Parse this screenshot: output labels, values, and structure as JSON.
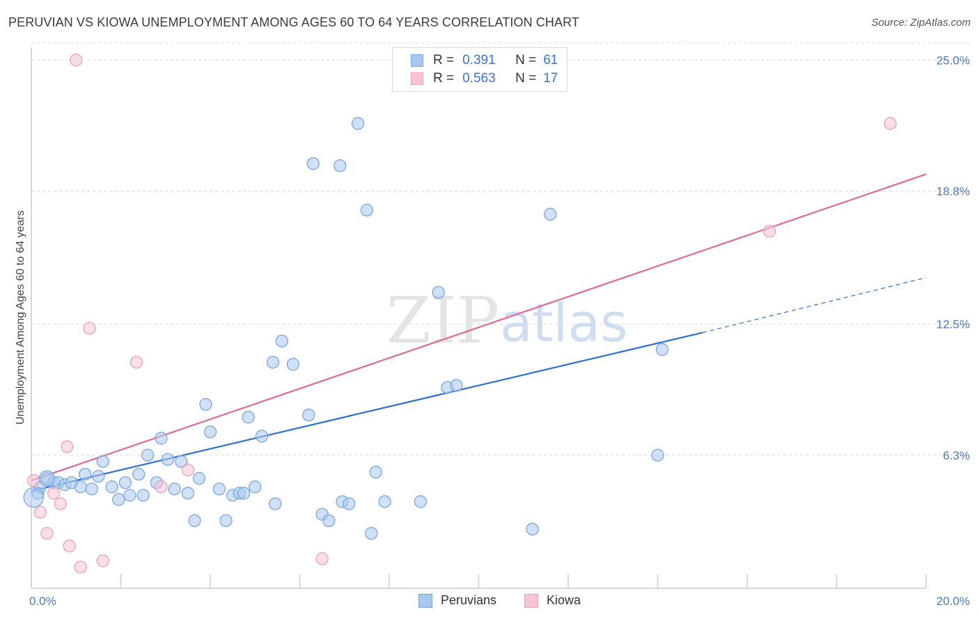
{
  "header": {
    "title": "PERUVIAN VS KIOWA UNEMPLOYMENT AMONG AGES 60 TO 64 YEARS CORRELATION CHART",
    "source": "Source: ZipAtlas.com"
  },
  "watermark": {
    "zip": "ZIP",
    "atlas": "atlas"
  },
  "legend": {
    "rows": [
      {
        "r_label": "R =",
        "r_value": "0.391",
        "n_label": "N =",
        "n_value": "61"
      },
      {
        "r_label": "R =",
        "r_value": "0.563",
        "n_label": "N =",
        "n_value": "17"
      }
    ],
    "bottom": [
      {
        "label": "Peruvians"
      },
      {
        "label": "Kiowa"
      }
    ]
  },
  "colors": {
    "peruvians_fill": "#a9c8f0",
    "peruvians_stroke": "#7aa6dd",
    "peruvians_line": "#2f6fd0",
    "kiowa_fill": "#f8c5d6",
    "kiowa_stroke": "#e8a0bb",
    "kiowa_line": "#e06a93",
    "grid": "#dcdcdc",
    "tick_text": "#4a78c4"
  },
  "chart_data": {
    "type": "scatter",
    "title": "PERUVIAN VS KIOWA UNEMPLOYMENT AMONG AGES 60 TO 64 YEARS CORRELATION CHART",
    "xlabel": "",
    "ylabel": "Unemployment Among Ages 60 to 64 years",
    "xlim": [
      0,
      20
    ],
    "ylim": [
      0,
      25.8
    ],
    "x_tick_labels": [
      "0.0%",
      "20.0%"
    ],
    "y_ticks": [
      6.3,
      12.5,
      18.8,
      25.0
    ],
    "y_tick_labels": [
      "6.3%",
      "12.5%",
      "18.8%",
      "25.0%"
    ],
    "grid": true,
    "series": [
      {
        "name": "Peruvians",
        "points": [
          [
            0.15,
            4.5
          ],
          [
            0.2,
            4.8
          ],
          [
            0.35,
            5.2
          ],
          [
            0.5,
            5.0
          ],
          [
            0.6,
            5.0
          ],
          [
            0.75,
            4.9
          ],
          [
            0.9,
            5.0
          ],
          [
            1.1,
            4.8
          ],
          [
            1.2,
            5.4
          ],
          [
            1.35,
            4.7
          ],
          [
            1.5,
            5.3
          ],
          [
            1.6,
            6.0
          ],
          [
            1.8,
            4.8
          ],
          [
            1.95,
            4.2
          ],
          [
            2.1,
            5.0
          ],
          [
            2.2,
            4.4
          ],
          [
            2.4,
            5.4
          ],
          [
            2.5,
            4.4
          ],
          [
            2.6,
            6.3
          ],
          [
            2.8,
            5.0
          ],
          [
            2.9,
            7.1
          ],
          [
            3.05,
            6.1
          ],
          [
            3.2,
            4.7
          ],
          [
            3.35,
            6.0
          ],
          [
            3.5,
            4.5
          ],
          [
            3.65,
            3.2
          ],
          [
            3.75,
            5.2
          ],
          [
            3.9,
            8.7
          ],
          [
            4.0,
            7.4
          ],
          [
            4.2,
            4.7
          ],
          [
            4.35,
            3.2
          ],
          [
            4.5,
            4.4
          ],
          [
            4.65,
            4.5
          ],
          [
            4.75,
            4.5
          ],
          [
            4.85,
            8.1
          ],
          [
            5.0,
            4.8
          ],
          [
            5.15,
            7.2
          ],
          [
            5.4,
            10.7
          ],
          [
            5.45,
            4.0
          ],
          [
            5.6,
            11.7
          ],
          [
            5.85,
            10.6
          ],
          [
            6.2,
            8.2
          ],
          [
            6.3,
            20.1
          ],
          [
            6.5,
            3.5
          ],
          [
            6.65,
            3.2
          ],
          [
            6.9,
            20.0
          ],
          [
            6.95,
            4.1
          ],
          [
            7.1,
            4.0
          ],
          [
            7.3,
            22.0
          ],
          [
            7.5,
            17.9
          ],
          [
            7.6,
            2.6
          ],
          [
            7.7,
            5.5
          ],
          [
            7.9,
            4.1
          ],
          [
            8.7,
            4.1
          ],
          [
            9.1,
            14.0
          ],
          [
            9.3,
            9.5
          ],
          [
            9.5,
            9.6
          ],
          [
            11.2,
            2.8
          ],
          [
            11.6,
            17.7
          ],
          [
            14.0,
            6.3
          ],
          [
            14.1,
            11.3
          ]
        ],
        "regression": {
          "x0": 0,
          "y0": 4.6,
          "x1": 15.0,
          "y1": 12.1,
          "dashed_to_x": 20.0,
          "dashed_to_y": 14.7
        }
      },
      {
        "name": "Kiowa",
        "points": [
          [
            0.05,
            5.1
          ],
          [
            0.2,
            3.6
          ],
          [
            0.35,
            2.6
          ],
          [
            0.5,
            4.5
          ],
          [
            0.65,
            4.0
          ],
          [
            0.8,
            6.7
          ],
          [
            0.85,
            2.0
          ],
          [
            1.1,
            1.0
          ],
          [
            1.3,
            12.3
          ],
          [
            1.6,
            1.3
          ],
          [
            2.35,
            10.7
          ],
          [
            2.9,
            4.8
          ],
          [
            3.5,
            5.6
          ],
          [
            6.5,
            1.4
          ],
          [
            1.0,
            25.0
          ],
          [
            16.5,
            16.9
          ],
          [
            19.2,
            22.0
          ]
        ],
        "regression": {
          "x0": 0,
          "y0": 5.1,
          "x1": 20.0,
          "y1": 19.6
        }
      }
    ]
  }
}
